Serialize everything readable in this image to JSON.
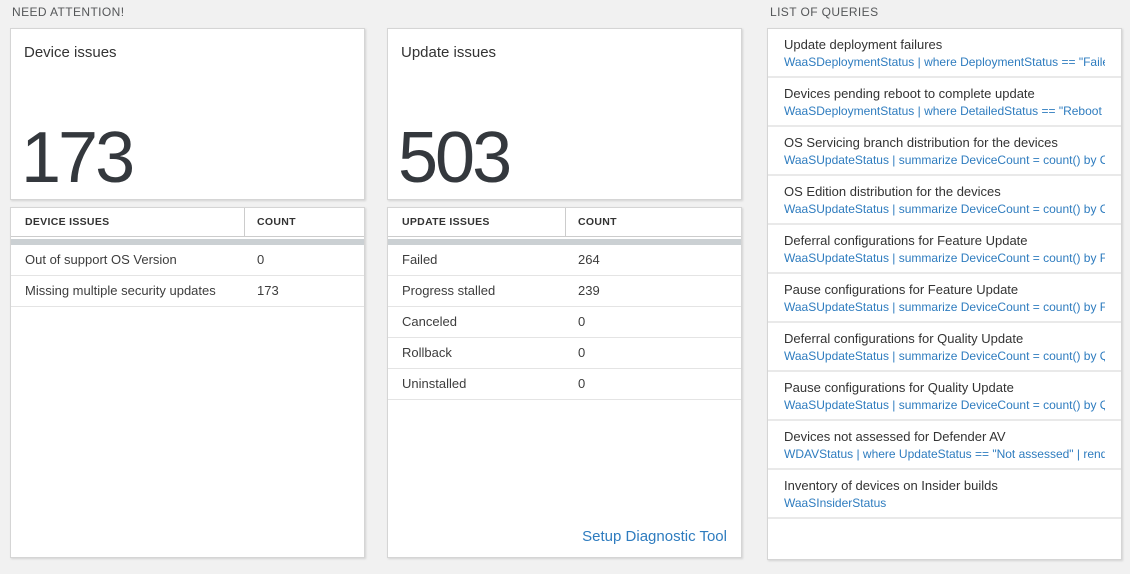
{
  "sections": {
    "need_attention": "NEED ATTENTION!",
    "list_of_queries": "LIST OF QUERIES"
  },
  "device_card": {
    "title": "Device issues",
    "count": "173"
  },
  "device_table": {
    "columns": [
      "DEVICE ISSUES",
      "COUNT"
    ],
    "rows": [
      {
        "issue": "Out of support OS Version",
        "count": "0"
      },
      {
        "issue": "Missing multiple security updates",
        "count": "173"
      }
    ]
  },
  "update_card": {
    "title": "Update issues",
    "count": "503"
  },
  "update_table": {
    "columns": [
      "UPDATE ISSUES",
      "COUNT"
    ],
    "rows": [
      {
        "issue": "Failed",
        "count": "264"
      },
      {
        "issue": "Progress stalled",
        "count": "239"
      },
      {
        "issue": "Canceled",
        "count": "0"
      },
      {
        "issue": "Rollback",
        "count": "0"
      },
      {
        "issue": "Uninstalled",
        "count": "0"
      }
    ],
    "footer_link": "Setup Diagnostic Tool"
  },
  "queries": {
    "items": [
      {
        "title": "Update deployment failures",
        "query": "WaaSDeploymentStatus | where DeploymentStatus == \"Failed\" |..."
      },
      {
        "title": "Devices pending reboot to complete update",
        "query": "WaaSDeploymentStatus | where DetailedStatus == \"Reboot pend..."
      },
      {
        "title": "OS Servicing branch distribution for the devices",
        "query": "WaaSUpdateStatus | summarize DeviceCount = count() by OSSer..."
      },
      {
        "title": "OS Edition distribution for the devices",
        "query": "WaaSUpdateStatus | summarize DeviceCount = count() by OSEdit..."
      },
      {
        "title": "Deferral configurations for Feature Update",
        "query": "WaaSUpdateStatus | summarize DeviceCount = count() by Featur..."
      },
      {
        "title": "Pause configurations for Feature Update",
        "query": "WaaSUpdateStatus | summarize DeviceCount = count() by Featur..."
      },
      {
        "title": "Deferral configurations for Quality Update",
        "query": "WaaSUpdateStatus | summarize DeviceCount = count() by Qualit..."
      },
      {
        "title": "Pause configurations for Quality Update",
        "query": "WaaSUpdateStatus | summarize DeviceCount = count() by Qualit..."
      },
      {
        "title": "Devices not assessed for Defender AV",
        "query": "WDAVStatus | where UpdateStatus == \"Not assessed\" | render ta..."
      },
      {
        "title": "Inventory of devices on Insider builds",
        "query": "WaaSInsiderStatus"
      }
    ]
  },
  "colors": {
    "link_blue": "#2e7cbf",
    "number_dark": "#34383d",
    "separator_gray": "#cbd0d3",
    "background": "#f1f1f1"
  }
}
